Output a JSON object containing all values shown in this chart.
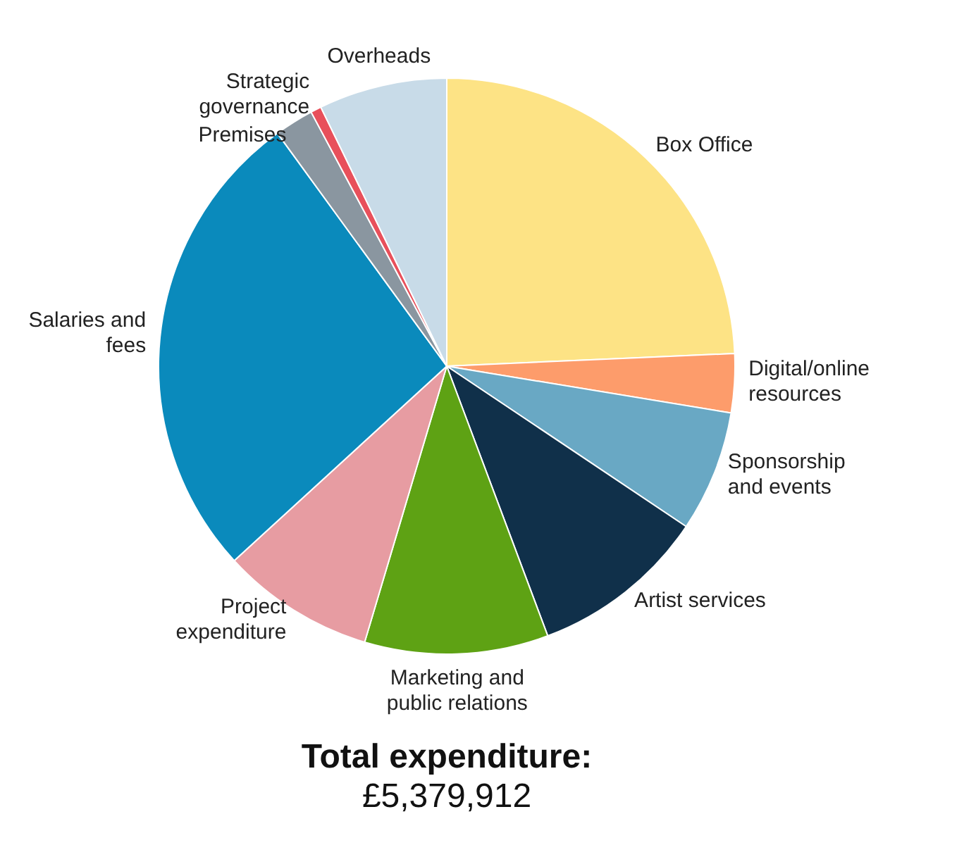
{
  "chart_data": {
    "type": "pie",
    "title": "Total expenditure:",
    "subtitle": "£5,379,912",
    "categories": [
      "Box Office",
      "Digital/online resources",
      "Sponsorship and events",
      "Artist services",
      "Marketing and public relations",
      "Project expenditure",
      "Salaries and fees",
      "Premises",
      "Strategic governance",
      "Overheads"
    ],
    "values": [
      24.3,
      3.3,
      6.8,
      9.9,
      10.3,
      8.6,
      26.8,
      2.2,
      0.6,
      7.2
    ],
    "colors": [
      "#fde385",
      "#fd9c6b",
      "#69a8c4",
      "#10304a",
      "#5ea214",
      "#e79ca2",
      "#0a8abc",
      "#8a96a0",
      "#e8505b",
      "#c8dbe8"
    ]
  }
}
